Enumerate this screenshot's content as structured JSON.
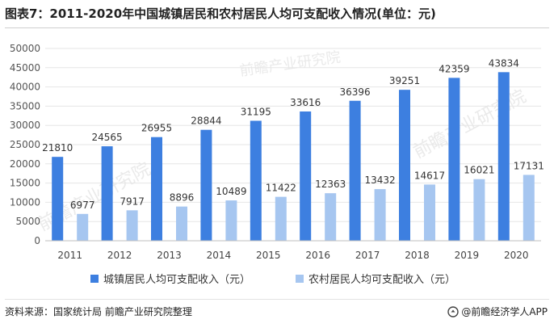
{
  "title": "图表7：2011-2020年中国城镇居民和农村居民人均可支配收入情况(单位：元)",
  "source": "资料来源：国家统计局 前瞻产业研究院整理",
  "brand": "@前瞻经济学人APP",
  "watermark": "前瞻产业研究院",
  "colors": {
    "urban": "#3d7fe0",
    "rural": "#a6c6f0",
    "grid": "#e6e6e6",
    "axis": "#bfbfbf"
  },
  "chart_data": {
    "type": "bar",
    "title": "图表7：2011-2020年中国城镇居民和农村居民人均可支配收入情况(单位：元)",
    "categories": [
      "2011",
      "2012",
      "2013",
      "2014",
      "2015",
      "2016",
      "2017",
      "2018",
      "2019",
      "2020"
    ],
    "series": [
      {
        "name": "城镇居民人均可支配收入（元）",
        "values": [
          21810,
          24565,
          26955,
          28844,
          31195,
          33616,
          36396,
          39251,
          42359,
          43834
        ]
      },
      {
        "name": "农村居民人均可支配收入（元）",
        "values": [
          6977,
          7917,
          8896,
          10489,
          11422,
          12363,
          13432,
          14617,
          16021,
          17131
        ]
      }
    ],
    "yticks": [
      "0",
      "5000",
      "10000",
      "15000",
      "20000",
      "25000",
      "30000",
      "35000",
      "40000",
      "45000",
      "50000"
    ],
    "ylim": [
      0,
      50000
    ],
    "grid": true,
    "legend": "bottom-center"
  }
}
